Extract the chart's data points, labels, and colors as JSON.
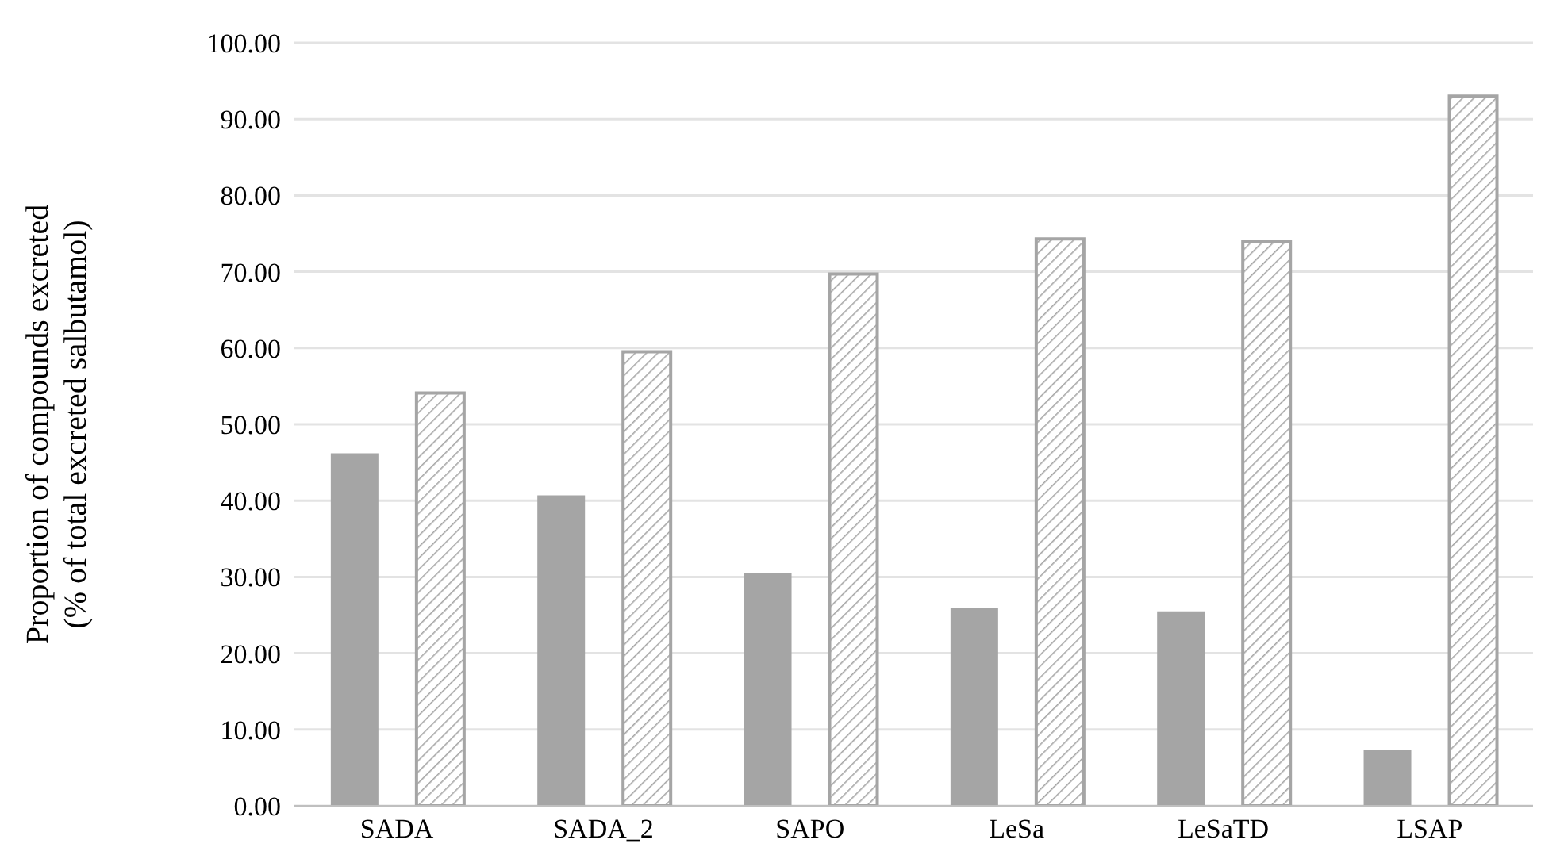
{
  "chart_data": {
    "type": "bar",
    "ylabel": "Proportion of compounds excreted\n(% of total excreted salbutamol)",
    "categories": [
      "SADA",
      "SADA_2",
      "SAPO",
      "LeSa",
      "LeSaTD",
      "LSAP"
    ],
    "series": [
      {
        "color": "#a5a5a5",
        "values": [
          46.2,
          40.7,
          30.5,
          26.0,
          25.5,
          7.3
        ]
      },
      {
        "color": "#a5a5a5",
        "values": [
          54.1,
          59.5,
          69.7,
          74.3,
          74.0,
          93.0
        ]
      }
    ],
    "ylim": [
      0,
      100
    ],
    "yticks": [
      {
        "value": 0,
        "label": "0.00"
      },
      {
        "value": 10,
        "label": "10.00"
      },
      {
        "value": 20,
        "label": "20.00"
      },
      {
        "value": 30,
        "label": "30.00"
      },
      {
        "value": 40,
        "label": "40.00"
      },
      {
        "value": 50,
        "label": "50.00"
      },
      {
        "value": 60,
        "label": "60.00"
      },
      {
        "value": 70,
        "label": "70.00"
      },
      {
        "value": 80,
        "label": "80.00"
      },
      {
        "value": 90,
        "label": "90.00"
      },
      {
        "value": 100,
        "label": "100.00"
      }
    ],
    "grid": "y"
  }
}
